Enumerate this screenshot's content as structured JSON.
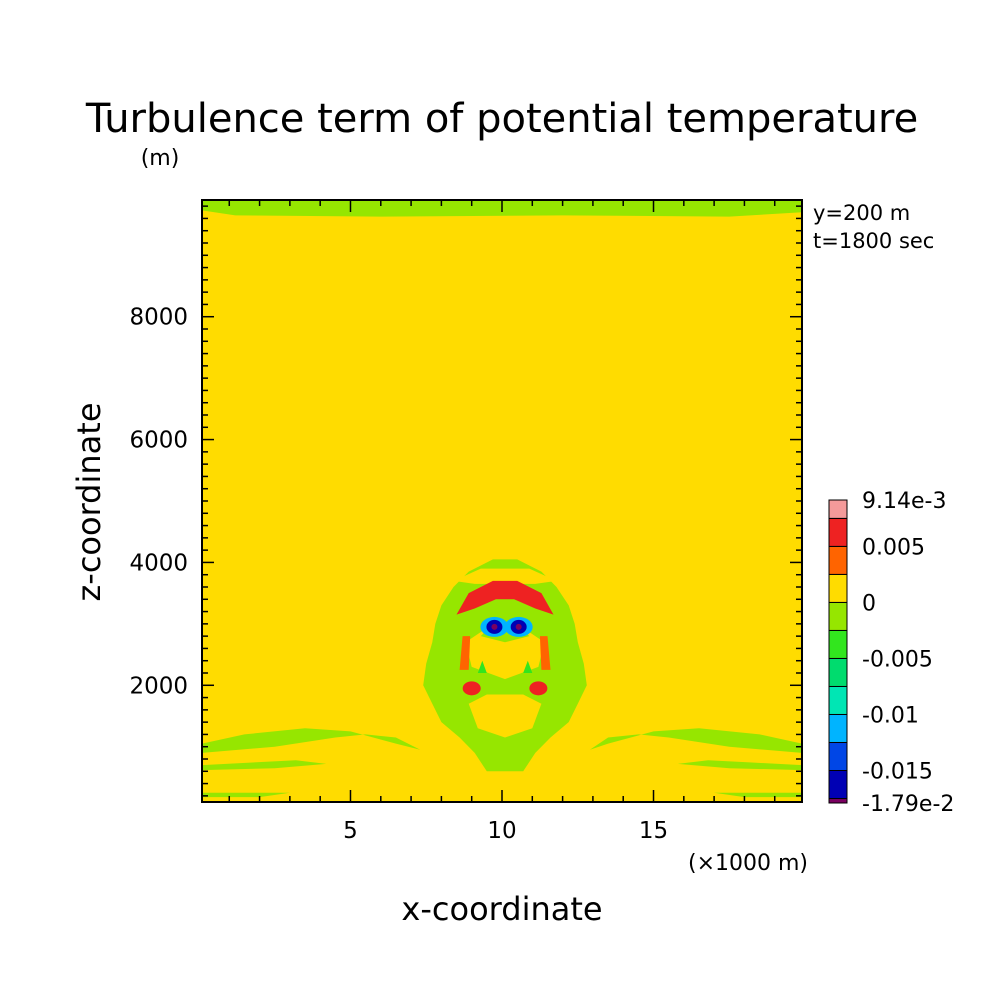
{
  "chart_data": {
    "type": "heatmap",
    "title": "Turbulence term of potential temperature",
    "ylabel_unit": "(m)",
    "xlabel": "x-coordinate",
    "ylabel": "z-coordinate",
    "xlabel_unit": "(×1000 m)",
    "xlim": [
      0.1,
      19.9
    ],
    "ylim": [
      100,
      9900
    ],
    "x_ticks": [
      5,
      10,
      15
    ],
    "y_ticks": [
      2000,
      4000,
      6000,
      8000
    ],
    "annotations": [
      "y=200 m",
      "t=1800 sec"
    ],
    "colorbar": {
      "labels": [
        "9.14e-3",
        "0.005",
        "0",
        "-0.005",
        "-0.01",
        "-0.015",
        "-1.79e-2"
      ],
      "levels": [
        -0.0179,
        -0.0175,
        -0.015,
        -0.0125,
        -0.01,
        -0.0075,
        -0.005,
        -0.0025,
        0,
        0.0025,
        0.005,
        0.0075,
        0.00914
      ],
      "colors": [
        "#7a0060",
        "#0000b4",
        "#0046e6",
        "#00b4ff",
        "#00e6b4",
        "#00dc6e",
        "#32e61e",
        "#96e600",
        "#ffdc00",
        "#ff6400",
        "#ee2222",
        "#f49a9a"
      ]
    },
    "background_color": "#ffdc00",
    "features": [
      {
        "name": "top-band",
        "x": [
          0.1,
          19.9
        ],
        "z": [
          9650,
          9900
        ],
        "value": -0.0015
      },
      {
        "name": "low-band-left",
        "x": [
          0.1,
          7.2
        ],
        "z": [
          900,
          1300
        ],
        "value": -0.0015
      },
      {
        "name": "low-band-right",
        "x": [
          12.8,
          19.9
        ],
        "z": [
          900,
          1300
        ],
        "value": -0.0015
      },
      {
        "name": "plume",
        "center_x": 10.1,
        "z": [
          600,
          4100
        ],
        "value": -0.0015
      },
      {
        "name": "warm-arc",
        "center_x": 10.1,
        "z": [
          3000,
          3750
        ],
        "value": 0.006
      },
      {
        "name": "cool-core-left",
        "x": 9.75,
        "z": 2950,
        "value": -0.0179
      },
      {
        "name": "cool-core-right",
        "x": 10.55,
        "z": 2950,
        "value": -0.0179
      },
      {
        "name": "warm-spot-left",
        "x": 9.0,
        "z": 1950,
        "value": 0.006
      },
      {
        "name": "warm-spot-right",
        "x": 11.2,
        "z": 1950,
        "value": 0.006
      }
    ]
  }
}
